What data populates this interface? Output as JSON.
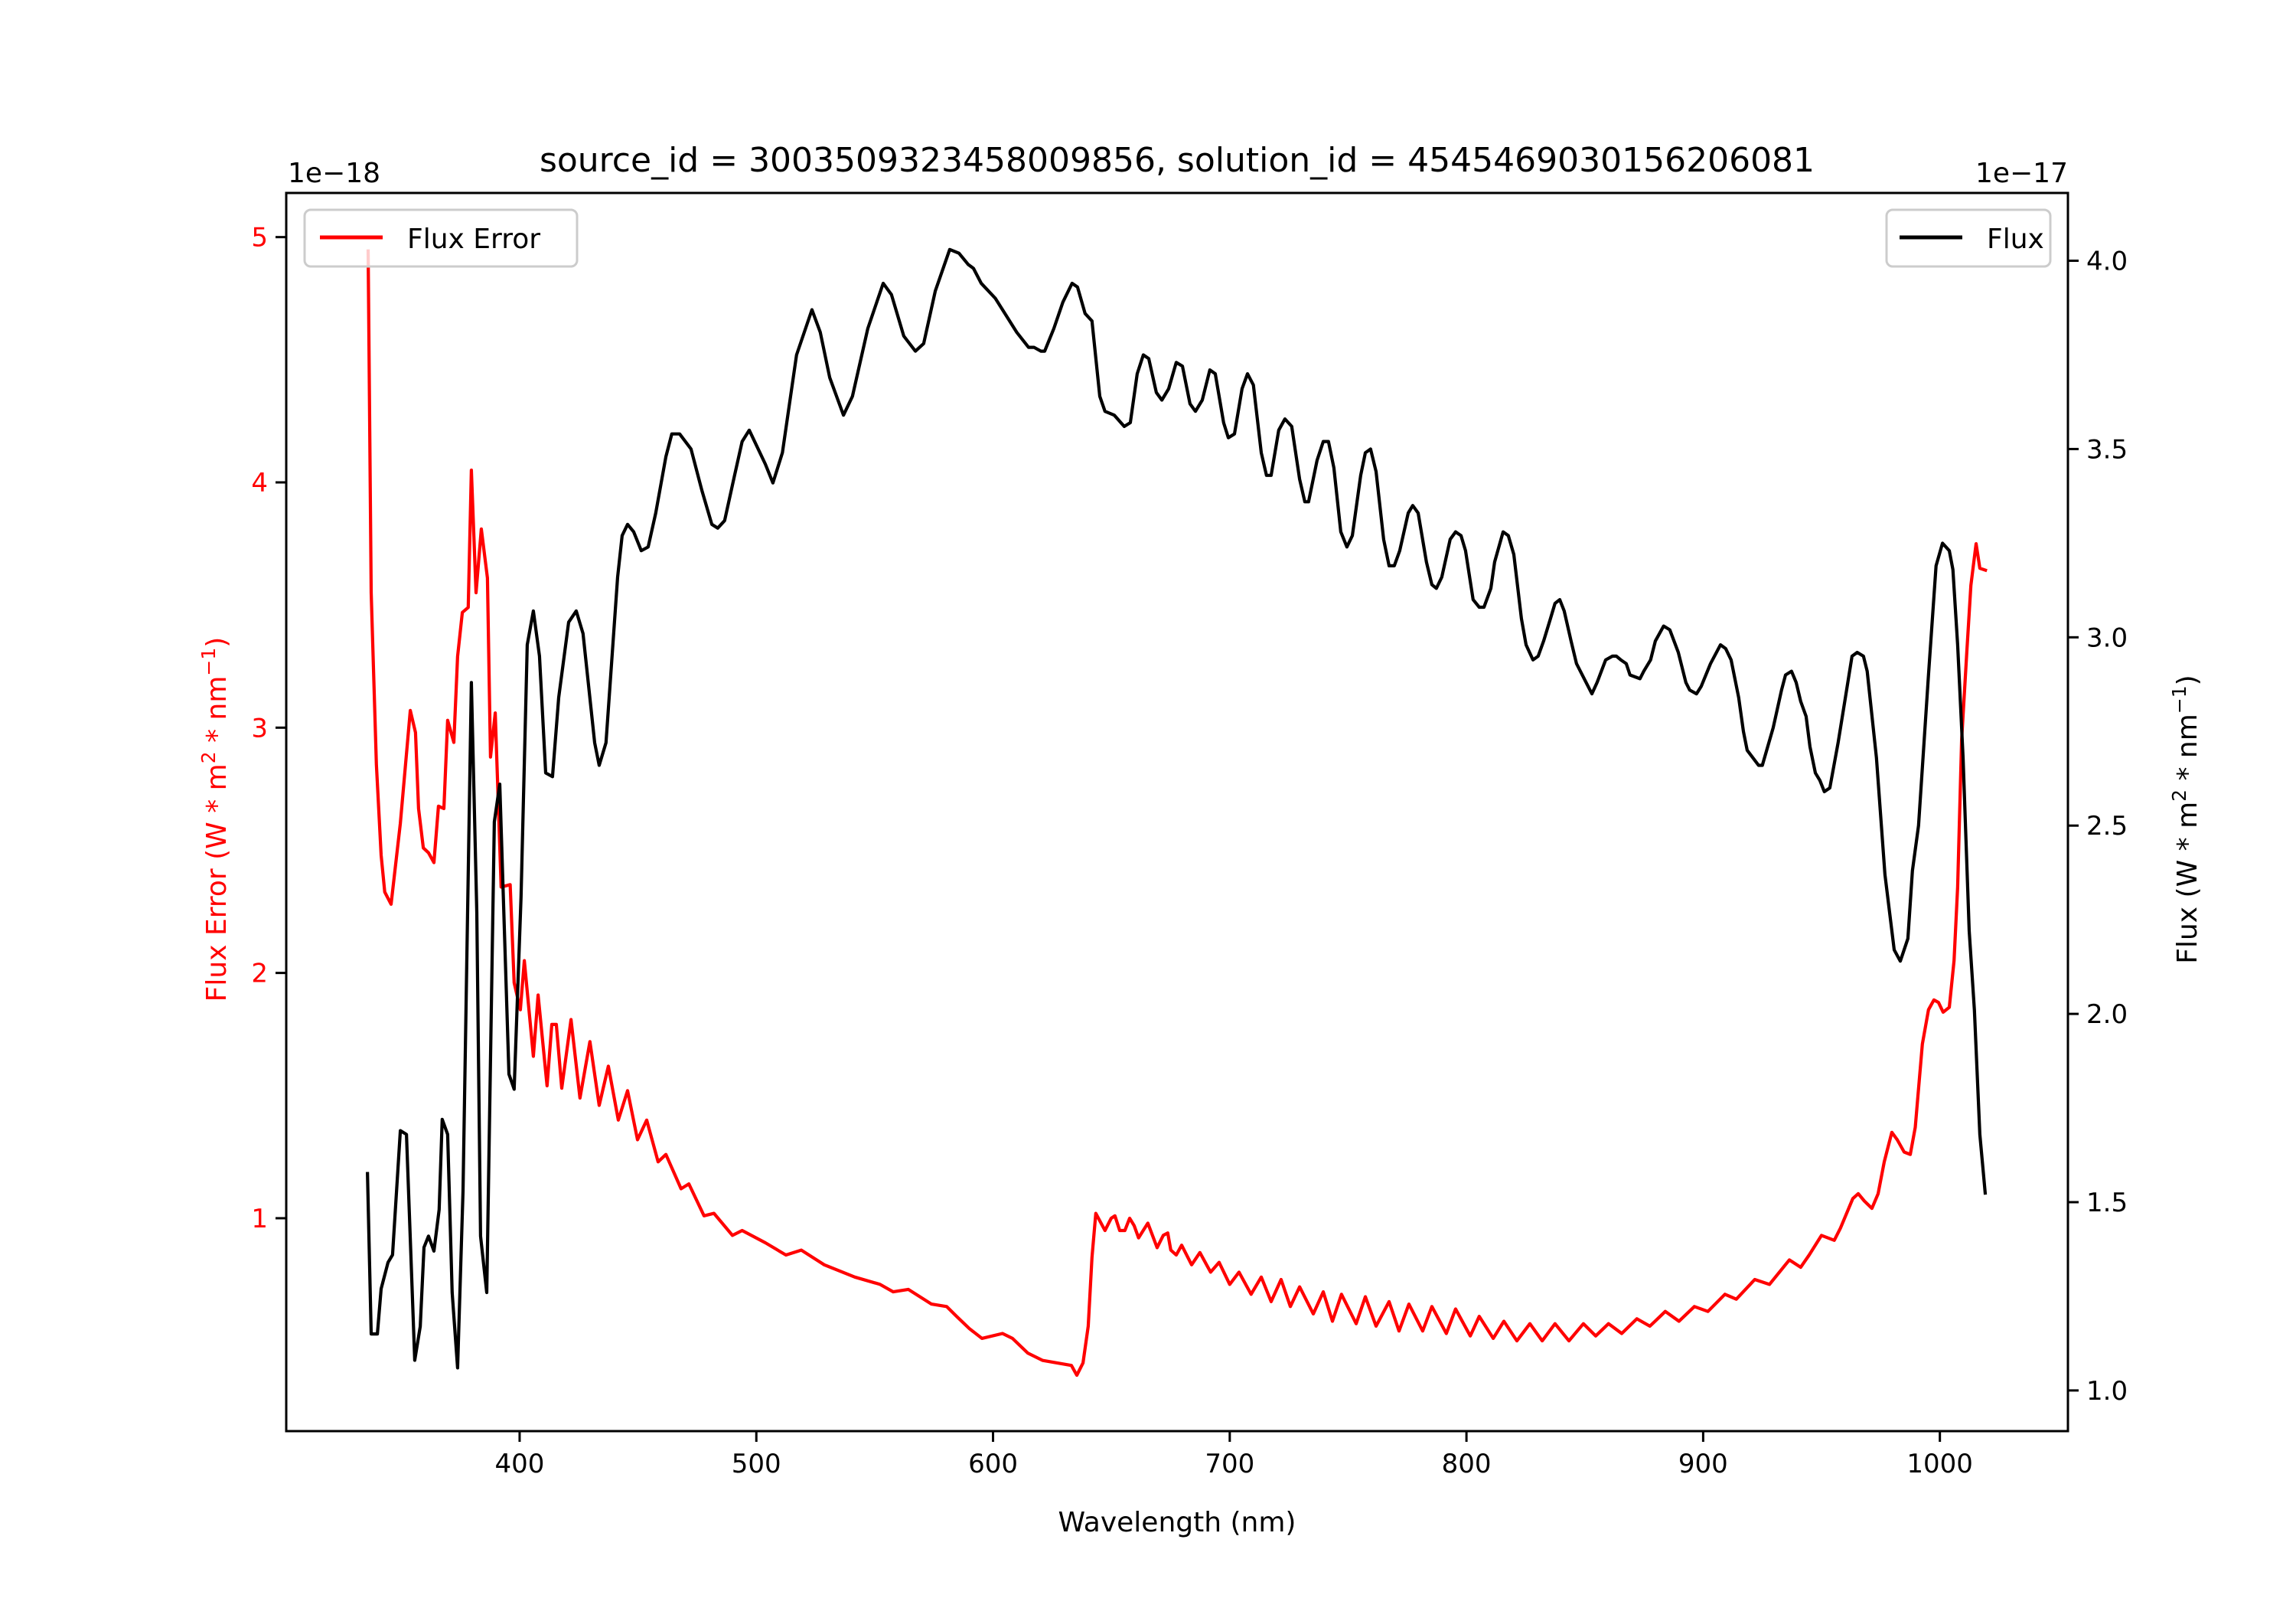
{
  "chart_data": {
    "type": "line",
    "title": "source_id = 3003509323458009856, solution_id = 4545469030156206081",
    "xlabel": "Wavelength (nm)",
    "xlim": [
      301.4,
      1054.1
    ],
    "xticks": [
      400,
      500,
      600,
      700,
      800,
      900,
      1000
    ],
    "grid": false,
    "left_axis": {
      "label_parts": [
        "Flux Error (W * m",
        "2",
        " * nm",
        "−1",
        ")"
      ],
      "offset_text": "1e−18",
      "ylim": [
        0.132,
        5.18
      ],
      "yticks": [
        1,
        2,
        3,
        4,
        5
      ],
      "tick_labels": [
        "1",
        "2",
        "3",
        "4",
        "5"
      ],
      "color": "#ff0000"
    },
    "right_axis": {
      "label_parts": [
        "Flux (W * m",
        "2",
        " * nm",
        "−1",
        ")"
      ],
      "offset_text": "1e−17",
      "ylim": [
        0.892,
        4.18
      ],
      "yticks": [
        1.0,
        1.5,
        2.0,
        2.5,
        3.0,
        3.5,
        4.0
      ],
      "tick_labels": [
        "1.0",
        "1.5",
        "2.0",
        "2.5",
        "3.0",
        "3.5",
        "4.0"
      ],
      "color": "#000000"
    },
    "series": [
      {
        "name": "Flux Error",
        "axis": "left",
        "color": "#ff0000",
        "legend": "top-left",
        "x": [
          336,
          337.3,
          339.5,
          341.5,
          343,
          345.7,
          349.6,
          353.8,
          356,
          357.3,
          359.3,
          361.5,
          363.8,
          365.7,
          368,
          369.6,
          372.2,
          373.8,
          375.8,
          378.3,
          379.6,
          381.6,
          383.8,
          386.4,
          387.7,
          389.7,
          392.2,
          396,
          397.7,
          400.3,
          402,
          405.8,
          407.8,
          411.6,
          413.6,
          415.5,
          417.8,
          421.7,
          425.5,
          429.7,
          433.6,
          437.5,
          441.7,
          445.6,
          449.8,
          453.7,
          458.5,
          461.8,
          468.2,
          471.5,
          477.9,
          482.1,
          489.9,
          494,
          503.8,
          512.5,
          519,
          528.7,
          541.6,
          552.3,
          557.8,
          564.2,
          574,
          580.4,
          584.6,
          590,
          595.3,
          604,
          608.2,
          614.7,
          621,
          633.1,
          635.4,
          638,
          640.2,
          641.8,
          643.4,
          647.3,
          649.9,
          651.5,
          653.5,
          655.7,
          657.7,
          659.6,
          661.5,
          665.4,
          669.3,
          671.9,
          673.8,
          675.1,
          677.4,
          679.7,
          683.9,
          687.4,
          691.9,
          695.5,
          700,
          703.9,
          709,
          713.3,
          717.5,
          721.7,
          725.6,
          729.5,
          735.3,
          739.5,
          743.4,
          747.2,
          753.4,
          757.3,
          761.8,
          767.3,
          771.5,
          775.7,
          781.5,
          785.4,
          791.5,
          795.4,
          801.6,
          805.4,
          811.3,
          815.8,
          821.3,
          826.8,
          832,
          837.4,
          843.3,
          849.4,
          854.6,
          860,
          865.6,
          872,
          877.5,
          884,
          889.8,
          896.3,
          902,
          909.2,
          914,
          921.8,
          928,
          936.4,
          941.2,
          944.8,
          950,
          955.4,
          958,
          963.2,
          965.5,
          968.1,
          971.3,
          973.9,
          976.5,
          979.7,
          982,
          984.9,
          987.5,
          989.6,
          992.6,
          995.2,
          997.5,
          999.4,
          1001.4,
          1004,
          1006,
          1007.5,
          1009.2,
          1011.4,
          1013.1,
          1015.3,
          1016.9,
          1019.9
        ],
        "y": [
          4.95,
          3.55,
          2.85,
          2.48,
          2.33,
          2.28,
          2.61,
          3.07,
          2.98,
          2.67,
          2.51,
          2.49,
          2.45,
          2.68,
          2.67,
          3.03,
          2.94,
          3.29,
          3.47,
          3.49,
          4.05,
          3.55,
          3.81,
          3.61,
          2.88,
          3.06,
          2.35,
          2.36,
          1.96,
          1.85,
          2.05,
          1.66,
          1.91,
          1.54,
          1.79,
          1.79,
          1.53,
          1.81,
          1.49,
          1.72,
          1.46,
          1.62,
          1.4,
          1.52,
          1.32,
          1.4,
          1.23,
          1.26,
          1.12,
          1.14,
          1.01,
          1.02,
          0.93,
          0.95,
          0.9,
          0.85,
          0.87,
          0.81,
          0.76,
          0.73,
          0.7,
          0.71,
          0.65,
          0.64,
          0.6,
          0.55,
          0.51,
          0.53,
          0.51,
          0.45,
          0.42,
          0.4,
          0.36,
          0.41,
          0.56,
          0.84,
          1.02,
          0.95,
          1.0,
          1.01,
          0.95,
          0.95,
          1.0,
          0.97,
          0.92,
          0.98,
          0.88,
          0.93,
          0.94,
          0.87,
          0.85,
          0.89,
          0.81,
          0.86,
          0.78,
          0.82,
          0.73,
          0.78,
          0.69,
          0.76,
          0.66,
          0.75,
          0.64,
          0.72,
          0.61,
          0.7,
          0.58,
          0.69,
          0.57,
          0.68,
          0.56,
          0.66,
          0.54,
          0.65,
          0.54,
          0.64,
          0.53,
          0.63,
          0.52,
          0.6,
          0.51,
          0.58,
          0.5,
          0.57,
          0.5,
          0.57,
          0.5,
          0.57,
          0.52,
          0.57,
          0.53,
          0.59,
          0.56,
          0.62,
          0.58,
          0.64,
          0.62,
          0.69,
          0.67,
          0.75,
          0.73,
          0.83,
          0.8,
          0.85,
          0.93,
          0.91,
          0.96,
          1.08,
          1.1,
          1.07,
          1.04,
          1.1,
          1.23,
          1.35,
          1.32,
          1.27,
          1.26,
          1.37,
          1.71,
          1.85,
          1.89,
          1.88,
          1.84,
          1.86,
          2.05,
          2.35,
          2.95,
          3.31,
          3.58,
          3.75,
          3.65,
          3.64
        ]
      },
      {
        "name": "Flux",
        "axis": "right",
        "color": "#000000",
        "legend": "top-right",
        "x": [
          335.7,
          337.3,
          339.9,
          341.5,
          344.4,
          346.3,
          349.6,
          352.2,
          355.7,
          358,
          359.6,
          361.5,
          363.8,
          366,
          367.3,
          369.6,
          371.5,
          373.8,
          376.1,
          379.6,
          381.9,
          383.5,
          386.1,
          389.3,
          391.6,
          395.5,
          397.7,
          400.6,
          403.2,
          405.8,
          408.4,
          411,
          413.9,
          416.5,
          420.7,
          423.9,
          426.8,
          431.7,
          433.6,
          436.5,
          441.4,
          443.3,
          445.6,
          448.2,
          451.4,
          454.3,
          457.5,
          461.8,
          464.3,
          467.6,
          472.4,
          477,
          481.2,
          483.7,
          486.6,
          490.8,
          494,
          497,
          503.8,
          507,
          511,
          517,
          523.5,
          527,
          531,
          536.8,
          540.6,
          547.1,
          553.6,
          557.1,
          562.3,
          567.2,
          570.7,
          575.6,
          581.7,
          585.6,
          589.5,
          591.7,
          595,
          601,
          605,
          610,
          615,
          617.3,
          620.2,
          621.8,
          625.7,
          629.5,
          633.4,
          635.7,
          638.9,
          641.8,
          645.1,
          647.3,
          651.2,
          655.4,
          658,
          660.9,
          663.5,
          665.8,
          669,
          671.3,
          674.2,
          677.4,
          680,
          683.2,
          685.5,
          688.4,
          691.6,
          693.9,
          697.4,
          699.4,
          702,
          705.2,
          707.5,
          710,
          713.3,
          715.5,
          717.5,
          720.7,
          723.3,
          726.2,
          729.5,
          731.7,
          733.3,
          736.9,
          739.5,
          741.7,
          744,
          746.9,
          749.5,
          751.8,
          755.3,
          757.3,
          759.5,
          761.8,
          765,
          767.3,
          769.5,
          771.8,
          775.4,
          777.3,
          779.6,
          783.1,
          785.4,
          787.3,
          789.6,
          793.1,
          795.4,
          797.7,
          799.6,
          802.8,
          805.4,
          807.4,
          810.3,
          811.9,
          815.5,
          817.7,
          820,
          823.2,
          825.2,
          828.1,
          830.3,
          832.6,
          835.5,
          837.4,
          839.4,
          841.3,
          844.2,
          846.5,
          853,
          855.2,
          858.8,
          861.7,
          863.3,
          865.2,
          867.5,
          869.1,
          873.3,
          874.9,
          877.8,
          879.8,
          883.3,
          885.9,
          889.5,
          892.7,
          894.3,
          897.2,
          899.2,
          903.1,
          907.3,
          909.5,
          911.8,
          915,
          917,
          918.6,
          923.4,
          925,
          929.6,
          933.1,
          934.8,
          937.3,
          939.3,
          941.2,
          943.5,
          945.1,
          947.4,
          949.3,
          951.2,
          953.5,
          957,
          960.6,
          962.9,
          965.1,
          967.7,
          969.3,
          973.2,
          976.8,
          980.7,
          983.3,
          986.5,
          988.4,
          991,
          995.2,
          998.4,
          1001.1,
          1004,
          1005.5,
          1007.5,
          1009.8,
          1012.4,
          1014.6,
          1016.9,
          1019.2
        ],
        "y": [
          1.58,
          1.15,
          1.15,
          1.27,
          1.34,
          1.36,
          1.69,
          1.68,
          1.08,
          1.17,
          1.38,
          1.41,
          1.37,
          1.48,
          1.72,
          1.68,
          1.26,
          1.06,
          1.53,
          2.88,
          2.27,
          1.41,
          1.26,
          2.51,
          2.61,
          1.84,
          1.8,
          2.31,
          2.98,
          3.07,
          2.95,
          2.64,
          2.63,
          2.84,
          3.04,
          3.07,
          3.01,
          2.72,
          2.66,
          2.72,
          3.16,
          3.27,
          3.3,
          3.28,
          3.23,
          3.24,
          3.33,
          3.48,
          3.54,
          3.54,
          3.5,
          3.39,
          3.3,
          3.29,
          3.31,
          3.43,
          3.52,
          3.55,
          3.46,
          3.41,
          3.49,
          3.75,
          3.87,
          3.81,
          3.69,
          3.59,
          3.64,
          3.82,
          3.94,
          3.91,
          3.8,
          3.76,
          3.78,
          3.92,
          4.03,
          4.02,
          3.99,
          3.98,
          3.94,
          3.9,
          3.86,
          3.81,
          3.77,
          3.77,
          3.76,
          3.76,
          3.82,
          3.89,
          3.94,
          3.93,
          3.86,
          3.84,
          3.64,
          3.6,
          3.59,
          3.56,
          3.57,
          3.7,
          3.75,
          3.74,
          3.65,
          3.63,
          3.66,
          3.73,
          3.72,
          3.62,
          3.6,
          3.63,
          3.71,
          3.7,
          3.57,
          3.53,
          3.54,
          3.66,
          3.7,
          3.67,
          3.49,
          3.43,
          3.43,
          3.55,
          3.58,
          3.56,
          3.42,
          3.36,
          3.36,
          3.47,
          3.52,
          3.52,
          3.45,
          3.28,
          3.24,
          3.27,
          3.43,
          3.49,
          3.5,
          3.44,
          3.26,
          3.19,
          3.19,
          3.23,
          3.33,
          3.35,
          3.33,
          3.2,
          3.14,
          3.13,
          3.16,
          3.26,
          3.28,
          3.27,
          3.23,
          3.1,
          3.08,
          3.08,
          3.13,
          3.2,
          3.28,
          3.27,
          3.22,
          3.05,
          2.98,
          2.94,
          2.95,
          2.99,
          3.05,
          3.09,
          3.1,
          3.07,
          2.99,
          2.93,
          2.85,
          2.88,
          2.94,
          2.95,
          2.95,
          2.94,
          2.93,
          2.9,
          2.89,
          2.91,
          2.94,
          2.99,
          3.03,
          3.02,
          2.96,
          2.88,
          2.86,
          2.85,
          2.87,
          2.93,
          2.98,
          2.97,
          2.94,
          2.84,
          2.75,
          2.7,
          2.66,
          2.66,
          2.76,
          2.86,
          2.9,
          2.91,
          2.88,
          2.83,
          2.79,
          2.71,
          2.64,
          2.62,
          2.59,
          2.6,
          2.72,
          2.86,
          2.95,
          2.96,
          2.95,
          2.91,
          2.68,
          2.37,
          2.17,
          2.14,
          2.2,
          2.38,
          2.5,
          2.9,
          3.19,
          3.25,
          3.23,
          3.18,
          2.98,
          2.68,
          2.22,
          2.01,
          1.68,
          1.52
        ]
      }
    ]
  }
}
